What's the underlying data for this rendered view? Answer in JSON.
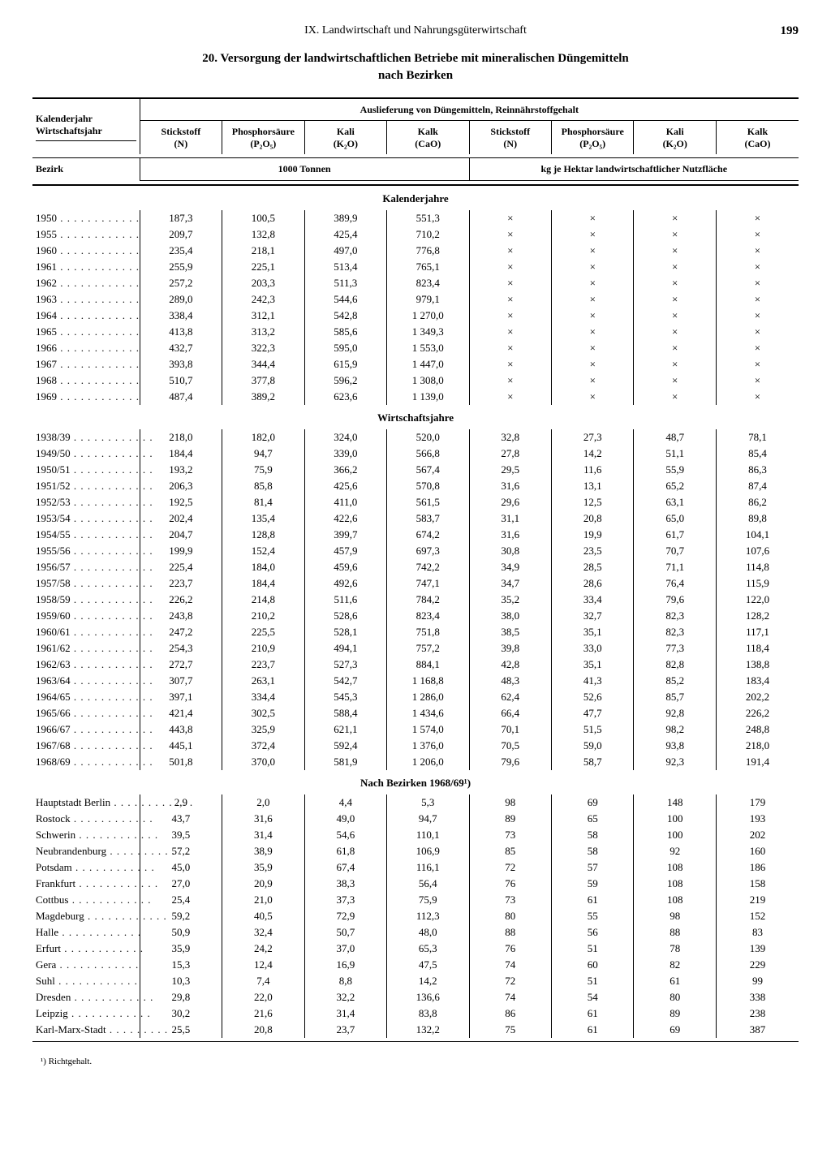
{
  "page": {
    "chapter": "IX. Landwirtschaft und Nahrungsgüterwirtschaft",
    "number": "199",
    "title": "20. Versorgung der landwirtschaftlichen Betriebe mit mineralischen Düngemitteln",
    "subtitle": "nach Bezirken"
  },
  "header": {
    "spanning": "Auslieferung von Düngemitteln, Reinnährstoffgehalt",
    "left1": "Kalenderjahr",
    "left2": "Wirtschaftsjahr",
    "left3": "Bezirk",
    "c1a": "Stickstoff",
    "c1b": "(N)",
    "c2a": "Phosphorsäure",
    "c2b": "(P₂O₅)",
    "c3a": "Kali",
    "c3b": "(K₂O)",
    "c4a": "Kalk",
    "c4b": "(CaO)",
    "c5a": "Stickstoff",
    "c5b": "(N)",
    "c6a": "Phosphorsäure",
    "c6b": "(P₂O₅)",
    "c7a": "Kali",
    "c7b": "(K₂O)",
    "c8a": "Kalk",
    "c8b": "(CaO)",
    "unit_left": "1000 Tonnen",
    "unit_right": "kg je Hektar landwirtschaftlicher Nutzfläche"
  },
  "sections": {
    "s1": "Kalenderjahre",
    "s2": "Wirtschaftsjahre",
    "s3": "Nach Bezirken 1968/69¹)"
  },
  "kalenderjahre": [
    {
      "y": "1950",
      "v": [
        "187,3",
        "100,5",
        "389,9",
        "551,3",
        "×",
        "×",
        "×",
        "×"
      ]
    },
    {
      "y": "1955",
      "v": [
        "209,7",
        "132,8",
        "425,4",
        "710,2",
        "×",
        "×",
        "×",
        "×"
      ]
    },
    {
      "y": "1960",
      "v": [
        "235,4",
        "218,1",
        "497,0",
        "776,8",
        "×",
        "×",
        "×",
        "×"
      ]
    },
    {
      "y": "1961",
      "v": [
        "255,9",
        "225,1",
        "513,4",
        "765,1",
        "×",
        "×",
        "×",
        "×"
      ]
    },
    {
      "y": "1962",
      "v": [
        "257,2",
        "203,3",
        "511,3",
        "823,4",
        "×",
        "×",
        "×",
        "×"
      ]
    },
    {
      "y": "1963",
      "v": [
        "289,0",
        "242,3",
        "544,6",
        "979,1",
        "×",
        "×",
        "×",
        "×"
      ]
    },
    {
      "y": "1964",
      "v": [
        "338,4",
        "312,1",
        "542,8",
        "1 270,0",
        "×",
        "×",
        "×",
        "×"
      ]
    },
    {
      "y": "1965",
      "v": [
        "413,8",
        "313,2",
        "585,6",
        "1 349,3",
        "×",
        "×",
        "×",
        "×"
      ]
    },
    {
      "y": "1966",
      "v": [
        "432,7",
        "322,3",
        "595,0",
        "1 553,0",
        "×",
        "×",
        "×",
        "×"
      ]
    },
    {
      "y": "1967",
      "v": [
        "393,8",
        "344,4",
        "615,9",
        "1 447,0",
        "×",
        "×",
        "×",
        "×"
      ]
    },
    {
      "y": "1968",
      "v": [
        "510,7",
        "377,8",
        "596,2",
        "1 308,0",
        "×",
        "×",
        "×",
        "×"
      ]
    },
    {
      "y": "1969",
      "v": [
        "487,4",
        "389,2",
        "623,6",
        "1 139,0",
        "×",
        "×",
        "×",
        "×"
      ]
    }
  ],
  "wirtschaftsjahre": [
    {
      "y": "1938/39",
      "v": [
        "218,0",
        "182,0",
        "324,0",
        "520,0",
        "32,8",
        "27,3",
        "48,7",
        "78,1"
      ]
    },
    {
      "y": "1949/50",
      "v": [
        "184,4",
        "94,7",
        "339,0",
        "566,8",
        "27,8",
        "14,2",
        "51,1",
        "85,4"
      ]
    },
    {
      "y": "1950/51",
      "v": [
        "193,2",
        "75,9",
        "366,2",
        "567,4",
        "29,5",
        "11,6",
        "55,9",
        "86,3"
      ]
    },
    {
      "y": "1951/52",
      "v": [
        "206,3",
        "85,8",
        "425,6",
        "570,8",
        "31,6",
        "13,1",
        "65,2",
        "87,4"
      ]
    },
    {
      "y": "1952/53",
      "v": [
        "192,5",
        "81,4",
        "411,0",
        "561,5",
        "29,6",
        "12,5",
        "63,1",
        "86,2"
      ]
    },
    {
      "y": "1953/54",
      "v": [
        "202,4",
        "135,4",
        "422,6",
        "583,7",
        "31,1",
        "20,8",
        "65,0",
        "89,8"
      ]
    },
    {
      "y": "1954/55",
      "v": [
        "204,7",
        "128,8",
        "399,7",
        "674,2",
        "31,6",
        "19,9",
        "61,7",
        "104,1"
      ]
    },
    {
      "y": "1955/56",
      "v": [
        "199,9",
        "152,4",
        "457,9",
        "697,3",
        "30,8",
        "23,5",
        "70,7",
        "107,6"
      ]
    },
    {
      "y": "1956/57",
      "v": [
        "225,4",
        "184,0",
        "459,6",
        "742,2",
        "34,9",
        "28,5",
        "71,1",
        "114,8"
      ]
    },
    {
      "y": "1957/58",
      "v": [
        "223,7",
        "184,4",
        "492,6",
        "747,1",
        "34,7",
        "28,6",
        "76,4",
        "115,9"
      ]
    },
    {
      "y": "1958/59",
      "v": [
        "226,2",
        "214,8",
        "511,6",
        "784,2",
        "35,2",
        "33,4",
        "79,6",
        "122,0"
      ]
    },
    {
      "y": "1959/60",
      "v": [
        "243,8",
        "210,2",
        "528,6",
        "823,4",
        "38,0",
        "32,7",
        "82,3",
        "128,2"
      ]
    },
    {
      "y": "1960/61",
      "v": [
        "247,2",
        "225,5",
        "528,1",
        "751,8",
        "38,5",
        "35,1",
        "82,3",
        "117,1"
      ]
    },
    {
      "y": "1961/62",
      "v": [
        "254,3",
        "210,9",
        "494,1",
        "757,2",
        "39,8",
        "33,0",
        "77,3",
        "118,4"
      ]
    },
    {
      "y": "1962/63",
      "v": [
        "272,7",
        "223,7",
        "527,3",
        "884,1",
        "42,8",
        "35,1",
        "82,8",
        "138,8"
      ]
    },
    {
      "y": "1963/64",
      "v": [
        "307,7",
        "263,1",
        "542,7",
        "1 168,8",
        "48,3",
        "41,3",
        "85,2",
        "183,4"
      ]
    },
    {
      "y": "1964/65",
      "v": [
        "397,1",
        "334,4",
        "545,3",
        "1 286,0",
        "62,4",
        "52,6",
        "85,7",
        "202,2"
      ]
    },
    {
      "y": "1965/66",
      "v": [
        "421,4",
        "302,5",
        "588,4",
        "1 434,6",
        "66,4",
        "47,7",
        "92,8",
        "226,2"
      ]
    },
    {
      "y": "1966/67",
      "v": [
        "443,8",
        "325,9",
        "621,1",
        "1 574,0",
        "70,1",
        "51,5",
        "98,2",
        "248,8"
      ]
    },
    {
      "y": "1967/68",
      "v": [
        "445,1",
        "372,4",
        "592,4",
        "1 376,0",
        "70,5",
        "59,0",
        "93,8",
        "218,0"
      ]
    },
    {
      "y": "1968/69",
      "v": [
        "501,8",
        "370,0",
        "581,9",
        "1 206,0",
        "79,6",
        "58,7",
        "92,3",
        "191,4"
      ]
    }
  ],
  "bezirke": [
    {
      "y": "Hauptstadt Berlin",
      "v": [
        "2,9",
        "2,0",
        "4,4",
        "5,3",
        "98",
        "69",
        "148",
        "179"
      ]
    },
    {
      "y": "Rostock",
      "v": [
        "43,7",
        "31,6",
        "49,0",
        "94,7",
        "89",
        "65",
        "100",
        "193"
      ]
    },
    {
      "y": "Schwerin",
      "v": [
        "39,5",
        "31,4",
        "54,6",
        "110,1",
        "73",
        "58",
        "100",
        "202"
      ]
    },
    {
      "y": "Neubrandenburg",
      "v": [
        "57,2",
        "38,9",
        "61,8",
        "106,9",
        "85",
        "58",
        "92",
        "160"
      ]
    },
    {
      "y": "Potsdam",
      "v": [
        "45,0",
        "35,9",
        "67,4",
        "116,1",
        "72",
        "57",
        "108",
        "186"
      ]
    },
    {
      "y": "Frankfurt",
      "v": [
        "27,0",
        "20,9",
        "38,3",
        "56,4",
        "76",
        "59",
        "108",
        "158"
      ]
    },
    {
      "y": "Cottbus",
      "v": [
        "25,4",
        "21,0",
        "37,3",
        "75,9",
        "73",
        "61",
        "108",
        "219"
      ]
    },
    {
      "y": "Magdeburg",
      "v": [
        "59,2",
        "40,5",
        "72,9",
        "112,3",
        "80",
        "55",
        "98",
        "152"
      ]
    },
    {
      "y": "Halle",
      "v": [
        "50,9",
        "32,4",
        "50,7",
        "48,0",
        "88",
        "56",
        "88",
        "83"
      ]
    },
    {
      "y": "Erfurt",
      "v": [
        "35,9",
        "24,2",
        "37,0",
        "65,3",
        "76",
        "51",
        "78",
        "139"
      ]
    },
    {
      "y": "Gera",
      "v": [
        "15,3",
        "12,4",
        "16,9",
        "47,5",
        "74",
        "60",
        "82",
        "229"
      ]
    },
    {
      "y": "Suhl",
      "v": [
        "10,3",
        "7,4",
        "8,8",
        "14,2",
        "72",
        "51",
        "61",
        "99"
      ]
    },
    {
      "y": "Dresden",
      "v": [
        "29,8",
        "22,0",
        "32,2",
        "136,6",
        "74",
        "54",
        "80",
        "338"
      ]
    },
    {
      "y": "Leipzig",
      "v": [
        "30,2",
        "21,6",
        "31,4",
        "83,8",
        "86",
        "61",
        "89",
        "238"
      ]
    },
    {
      "y": "Karl-Marx-Stadt",
      "v": [
        "25,5",
        "20,8",
        "23,7",
        "132,2",
        "75",
        "61",
        "69",
        "387"
      ]
    }
  ],
  "footnote": "¹) Richtgehalt."
}
